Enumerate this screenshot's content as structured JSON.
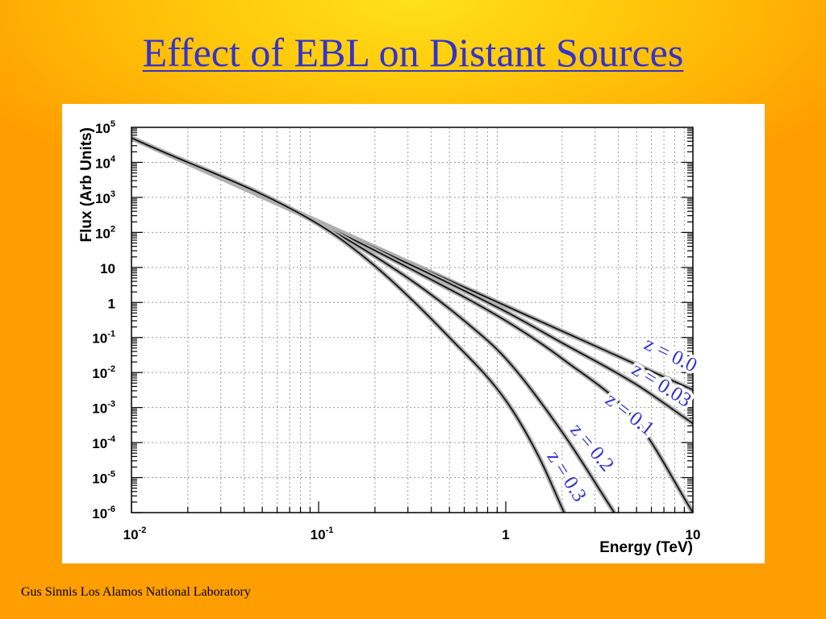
{
  "title": "Effect of EBL on Distant Sources",
  "footer": "Gus Sinnis Los Alamos National Laboratory",
  "chart_data": {
    "type": "line",
    "xlabel": "Energy (TeV)",
    "ylabel": "Flux (Arb Units)",
    "x_scale": "log",
    "y_scale": "log",
    "xlim": [
      0.01,
      10
    ],
    "ylim": [
      1e-06,
      100000
    ],
    "grid": true,
    "x_ticks": [
      {
        "value": 0.01,
        "base": "10",
        "exp": "-2"
      },
      {
        "value": 0.1,
        "base": "10",
        "exp": "-1"
      },
      {
        "value": 1,
        "base": "1",
        "exp": ""
      },
      {
        "value": 10,
        "base": "10",
        "exp": ""
      }
    ],
    "y_ticks": [
      {
        "value": 100000,
        "base": "10",
        "exp": "5"
      },
      {
        "value": 10000,
        "base": "10",
        "exp": "4"
      },
      {
        "value": 1000,
        "base": "10",
        "exp": "3"
      },
      {
        "value": 100,
        "base": "10",
        "exp": "2"
      },
      {
        "value": 10,
        "base": "10",
        "exp": ""
      },
      {
        "value": 1,
        "base": "1",
        "exp": ""
      },
      {
        "value": 0.1,
        "base": "10",
        "exp": "-1"
      },
      {
        "value": 0.01,
        "base": "10",
        "exp": "-2"
      },
      {
        "value": 0.001,
        "base": "10",
        "exp": "-3"
      },
      {
        "value": 0.0001,
        "base": "10",
        "exp": "-4"
      },
      {
        "value": 1e-05,
        "base": "10",
        "exp": "-5"
      },
      {
        "value": 1e-06,
        "base": "10",
        "exp": "-6"
      }
    ],
    "series": [
      {
        "name": "z = 0.0",
        "x": [
          0.01,
          0.1,
          1,
          10
        ],
        "y": [
          50000,
          200,
          0.8,
          0.0032
        ]
      },
      {
        "name": "z = 0.03",
        "x": [
          0.01,
          0.1,
          0.5,
          1,
          2,
          5,
          10
        ],
        "y": [
          50000,
          200,
          3.5,
          0.55,
          0.07,
          0.0045,
          0.00035
        ]
      },
      {
        "name": "z = 0.1",
        "x": [
          0.01,
          0.1,
          0.3,
          1,
          2,
          5,
          10
        ],
        "y": [
          50000,
          190,
          10,
          0.3,
          0.025,
          0.0004,
          1e-06
        ]
      },
      {
        "name": "z = 0.2",
        "x": [
          0.01,
          0.1,
          0.3,
          0.6,
          1,
          2,
          3.8
        ],
        "y": [
          50000,
          180,
          5,
          0.3,
          0.025,
          0.0002,
          1e-06
        ]
      },
      {
        "name": "z = 0.3",
        "x": [
          0.01,
          0.1,
          0.2,
          0.5,
          1,
          1.5,
          2.05
        ],
        "y": [
          50000,
          170,
          11,
          0.1,
          0.0016,
          4e-05,
          1e-06
        ]
      }
    ]
  }
}
